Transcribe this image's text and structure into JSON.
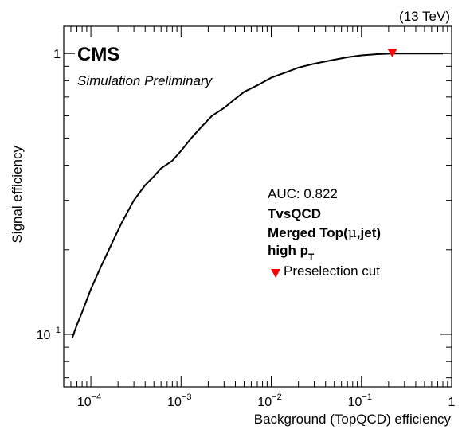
{
  "chart_data": {
    "type": "line",
    "energy_label": "(13 TeV)",
    "cms_label": "CMS",
    "sim_label": "Simulation Preliminary",
    "xlabel": "Background (TopQCD) efficiency",
    "ylabel": "Signal efficiency",
    "xscale": "log",
    "yscale": "log",
    "xlim": [
      5e-05,
      1
    ],
    "ylim": [
      0.065,
      1.25
    ],
    "x_ticks": [
      {
        "value": 0.0001,
        "base": "10",
        "exp": "−4"
      },
      {
        "value": 0.001,
        "base": "10",
        "exp": "−3"
      },
      {
        "value": 0.01,
        "base": "10",
        "exp": "−2"
      },
      {
        "value": 0.1,
        "base": "10",
        "exp": "−1"
      },
      {
        "value": 1,
        "label": "1"
      }
    ],
    "y_ticks": [
      {
        "value": 0.1,
        "base": "10",
        "exp": "−1"
      },
      {
        "value": 1,
        "label": "1"
      }
    ],
    "annotations": {
      "auc": "AUC: 0.822",
      "tagger": "TvsQCD",
      "category_prefix": "Merged Top(",
      "category_mu": "μ",
      "category_suffix": ",jet)",
      "pt_prefix": "high p",
      "pt_sub": "T",
      "marker_legend": "Preselection cut"
    },
    "marker_color": "#ff0000",
    "line_color": "#000000",
    "series": [
      {
        "x": [
          6.2e-05,
          7e-05,
          8e-05,
          0.0001,
          0.00013,
          0.00017,
          0.00022,
          0.0003,
          0.0004,
          0.0005,
          0.0006,
          0.0008,
          0.001,
          0.0013,
          0.0017,
          0.0022,
          0.003,
          0.004,
          0.005,
          0.007,
          0.01,
          0.015,
          0.02,
          0.03,
          0.05,
          0.07,
          0.1,
          0.15,
          0.22,
          0.3,
          0.5,
          0.8
        ],
        "y": [
          0.097,
          0.108,
          0.12,
          0.145,
          0.175,
          0.21,
          0.25,
          0.3,
          0.34,
          0.365,
          0.39,
          0.415,
          0.45,
          0.5,
          0.55,
          0.6,
          0.64,
          0.69,
          0.73,
          0.77,
          0.82,
          0.86,
          0.89,
          0.92,
          0.95,
          0.97,
          0.985,
          0.995,
          1.0,
          1.0,
          1.0,
          1.0
        ]
      }
    ],
    "marker": {
      "x": 0.22,
      "y": 1.0
    }
  }
}
